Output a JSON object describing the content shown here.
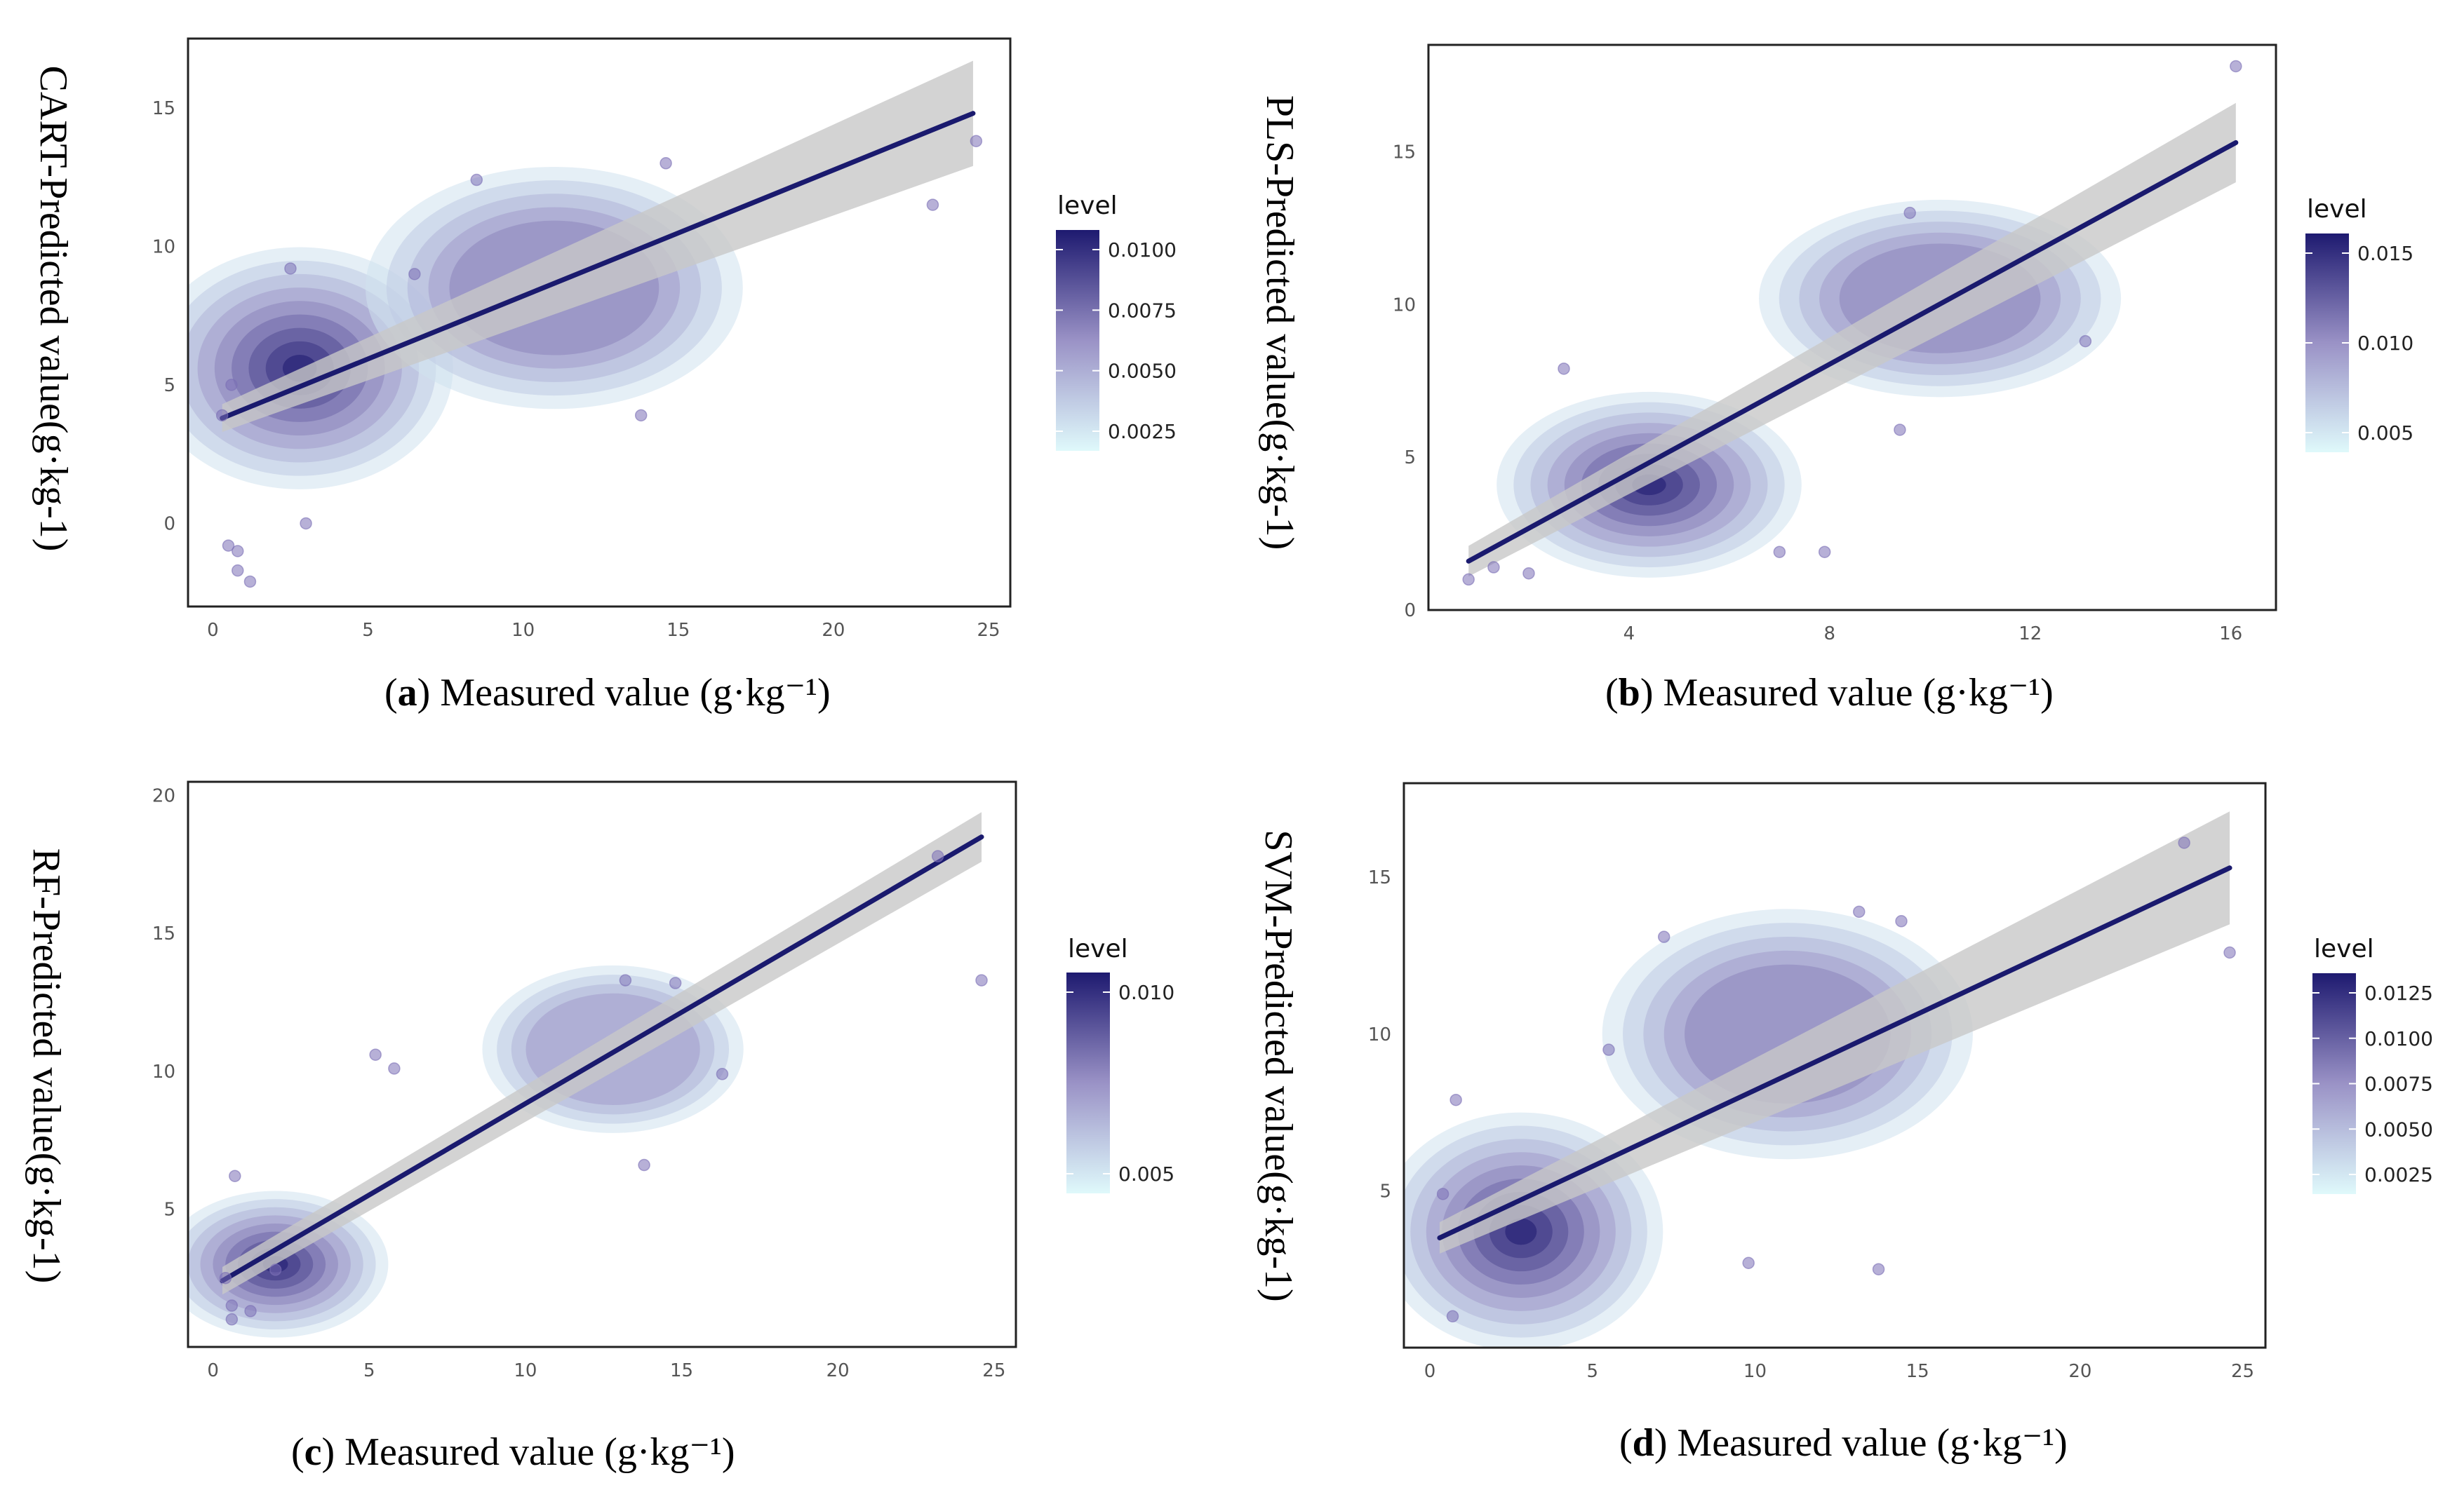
{
  "colors": {
    "low": "#dff9fb",
    "mid": "#9a92c6",
    "high": "#1e1a70",
    "line": "#1a1a6e",
    "band": "#c8c8c8",
    "point": "#7b6fb6"
  },
  "chart_data": [
    {
      "id": "a",
      "type": "scatter",
      "overlay": "2d-density-contours + linear fit with confidence band",
      "caption_letter": "a",
      "caption_text": "Measured value (g·kg⁻¹)",
      "ylabel": "CART-Predicted value(g·kg-1)",
      "xlim": [
        -0.8,
        25.7
      ],
      "ylim": [
        -3.0,
        17.5
      ],
      "xticks": [
        0,
        5,
        10,
        15,
        20,
        25
      ],
      "yticks": [
        0,
        5,
        10,
        15
      ],
      "legend_title": "level",
      "legend_ticks": [
        "0.0100",
        "0.0075",
        "0.0050",
        "0.0025"
      ],
      "fit": {
        "x0": 0.3,
        "y0": 3.8,
        "x1": 24.5,
        "y1": 14.8,
        "band0": 0.5,
        "band1": 1.9
      },
      "density_centers": [
        {
          "x": 2.8,
          "y": 5.6,
          "sx": 2.6,
          "sy": 2.3,
          "w": 1.0
        },
        {
          "x": 11.0,
          "y": 8.5,
          "sx": 3.2,
          "sy": 2.3,
          "w": 0.55
        }
      ],
      "points": [
        [
          0.3,
          3.9
        ],
        [
          0.5,
          -0.8
        ],
        [
          0.8,
          -1.0
        ],
        [
          0.8,
          -1.7
        ],
        [
          1.2,
          -2.1
        ],
        [
          0.6,
          5.0
        ],
        [
          2.5,
          9.2
        ],
        [
          3.0,
          0.0
        ],
        [
          8.5,
          12.4
        ],
        [
          13.8,
          3.9
        ],
        [
          14.6,
          13.0
        ],
        [
          23.2,
          11.5
        ],
        [
          24.6,
          13.8
        ],
        [
          6.5,
          9.0
        ]
      ]
    },
    {
      "id": "b",
      "type": "scatter",
      "overlay": "2d-density-contours + linear fit with confidence band",
      "caption_letter": "b",
      "caption_text": "Measured value (g·kg⁻¹)",
      "ylabel": "PLS-Predicted value(g·kg-1)",
      "xlim": [
        0.0,
        16.9
      ],
      "ylim": [
        0.0,
        18.5
      ],
      "xticks": [
        4,
        8,
        12,
        16
      ],
      "yticks": [
        0,
        5,
        10,
        15
      ],
      "legend_title": "level",
      "legend_ticks": [
        "0.015",
        "0.010",
        "0.005"
      ],
      "fit": {
        "x0": 0.8,
        "y0": 1.6,
        "x1": 16.1,
        "y1": 15.3,
        "band0": 0.5,
        "band1": 1.3
      },
      "density_centers": [
        {
          "x": 4.4,
          "y": 4.1,
          "sx": 1.6,
          "sy": 1.6,
          "w": 1.0
        },
        {
          "x": 10.2,
          "y": 10.2,
          "sx": 1.9,
          "sy": 1.7,
          "w": 0.55
        }
      ],
      "points": [
        [
          0.8,
          1.0
        ],
        [
          1.3,
          1.4
        ],
        [
          2.7,
          7.9
        ],
        [
          7.0,
          1.9
        ],
        [
          7.9,
          1.9
        ],
        [
          9.4,
          5.9
        ],
        [
          9.6,
          13.0
        ],
        [
          13.1,
          8.8
        ],
        [
          16.1,
          17.8
        ],
        [
          2.0,
          1.2
        ]
      ]
    },
    {
      "id": "c",
      "type": "scatter",
      "overlay": "2d-density-contours + linear fit with confidence band",
      "caption_letter": "c",
      "caption_text": "Measured value (g·kg⁻¹)",
      "ylabel": "RF-Predicted value(g·kg-1)",
      "xlim": [
        -0.8,
        25.7
      ],
      "ylim": [
        0.0,
        20.5
      ],
      "xticks": [
        0,
        5,
        10,
        15,
        20,
        25
      ],
      "yticks": [
        5,
        10,
        15,
        20
      ],
      "legend_title": "level",
      "legend_ticks": [
        "0.010",
        "0.005"
      ],
      "fit": {
        "x0": 0.3,
        "y0": 2.4,
        "x1": 24.6,
        "y1": 18.5,
        "band0": 0.5,
        "band1": 0.9
      },
      "density_centers": [
        {
          "x": 2.0,
          "y": 3.0,
          "sx": 1.9,
          "sy": 1.4,
          "w": 1.0
        },
        {
          "x": 12.8,
          "y": 10.8,
          "sx": 2.2,
          "sy": 1.6,
          "w": 0.45
        }
      ],
      "points": [
        [
          0.4,
          2.5
        ],
        [
          0.7,
          6.2
        ],
        [
          0.6,
          1.5
        ],
        [
          0.6,
          1.0
        ],
        [
          1.2,
          1.3
        ],
        [
          5.2,
          10.6
        ],
        [
          5.8,
          10.1
        ],
        [
          13.2,
          13.3
        ],
        [
          14.8,
          13.2
        ],
        [
          13.8,
          6.6
        ],
        [
          16.3,
          9.9
        ],
        [
          23.2,
          17.8
        ],
        [
          24.6,
          13.3
        ],
        [
          2.0,
          2.8
        ]
      ]
    },
    {
      "id": "d",
      "type": "scatter",
      "overlay": "2d-density-contours + linear fit with confidence band",
      "caption_letter": "d",
      "caption_text": "Measured value (g·kg⁻¹)",
      "ylabel": "SVM-Predicted value(g·kg-1)",
      "xlim": [
        -0.8,
        25.7
      ],
      "ylim": [
        0.0,
        18.0
      ],
      "xticks": [
        0,
        5,
        10,
        15,
        20,
        25
      ],
      "yticks": [
        5,
        10,
        15
      ],
      "legend_title": "level",
      "legend_ticks": [
        "0.0125",
        "0.0100",
        "0.0075",
        "0.0050",
        "0.0025"
      ],
      "fit": {
        "x0": 0.3,
        "y0": 3.5,
        "x1": 24.6,
        "y1": 15.3,
        "band0": 0.5,
        "band1": 1.8
      },
      "density_centers": [
        {
          "x": 2.8,
          "y": 3.7,
          "sx": 2.3,
          "sy": 2.0,
          "w": 1.0
        },
        {
          "x": 11.0,
          "y": 10.0,
          "sx": 3.0,
          "sy": 2.1,
          "w": 0.5
        }
      ],
      "points": [
        [
          0.4,
          4.9
        ],
        [
          0.7,
          1.0
        ],
        [
          0.8,
          7.9
        ],
        [
          7.2,
          13.1
        ],
        [
          9.8,
          2.7
        ],
        [
          13.2,
          13.9
        ],
        [
          14.5,
          13.6
        ],
        [
          13.8,
          2.5
        ],
        [
          23.2,
          16.1
        ],
        [
          24.6,
          12.6
        ],
        [
          5.5,
          9.5
        ]
      ]
    }
  ]
}
